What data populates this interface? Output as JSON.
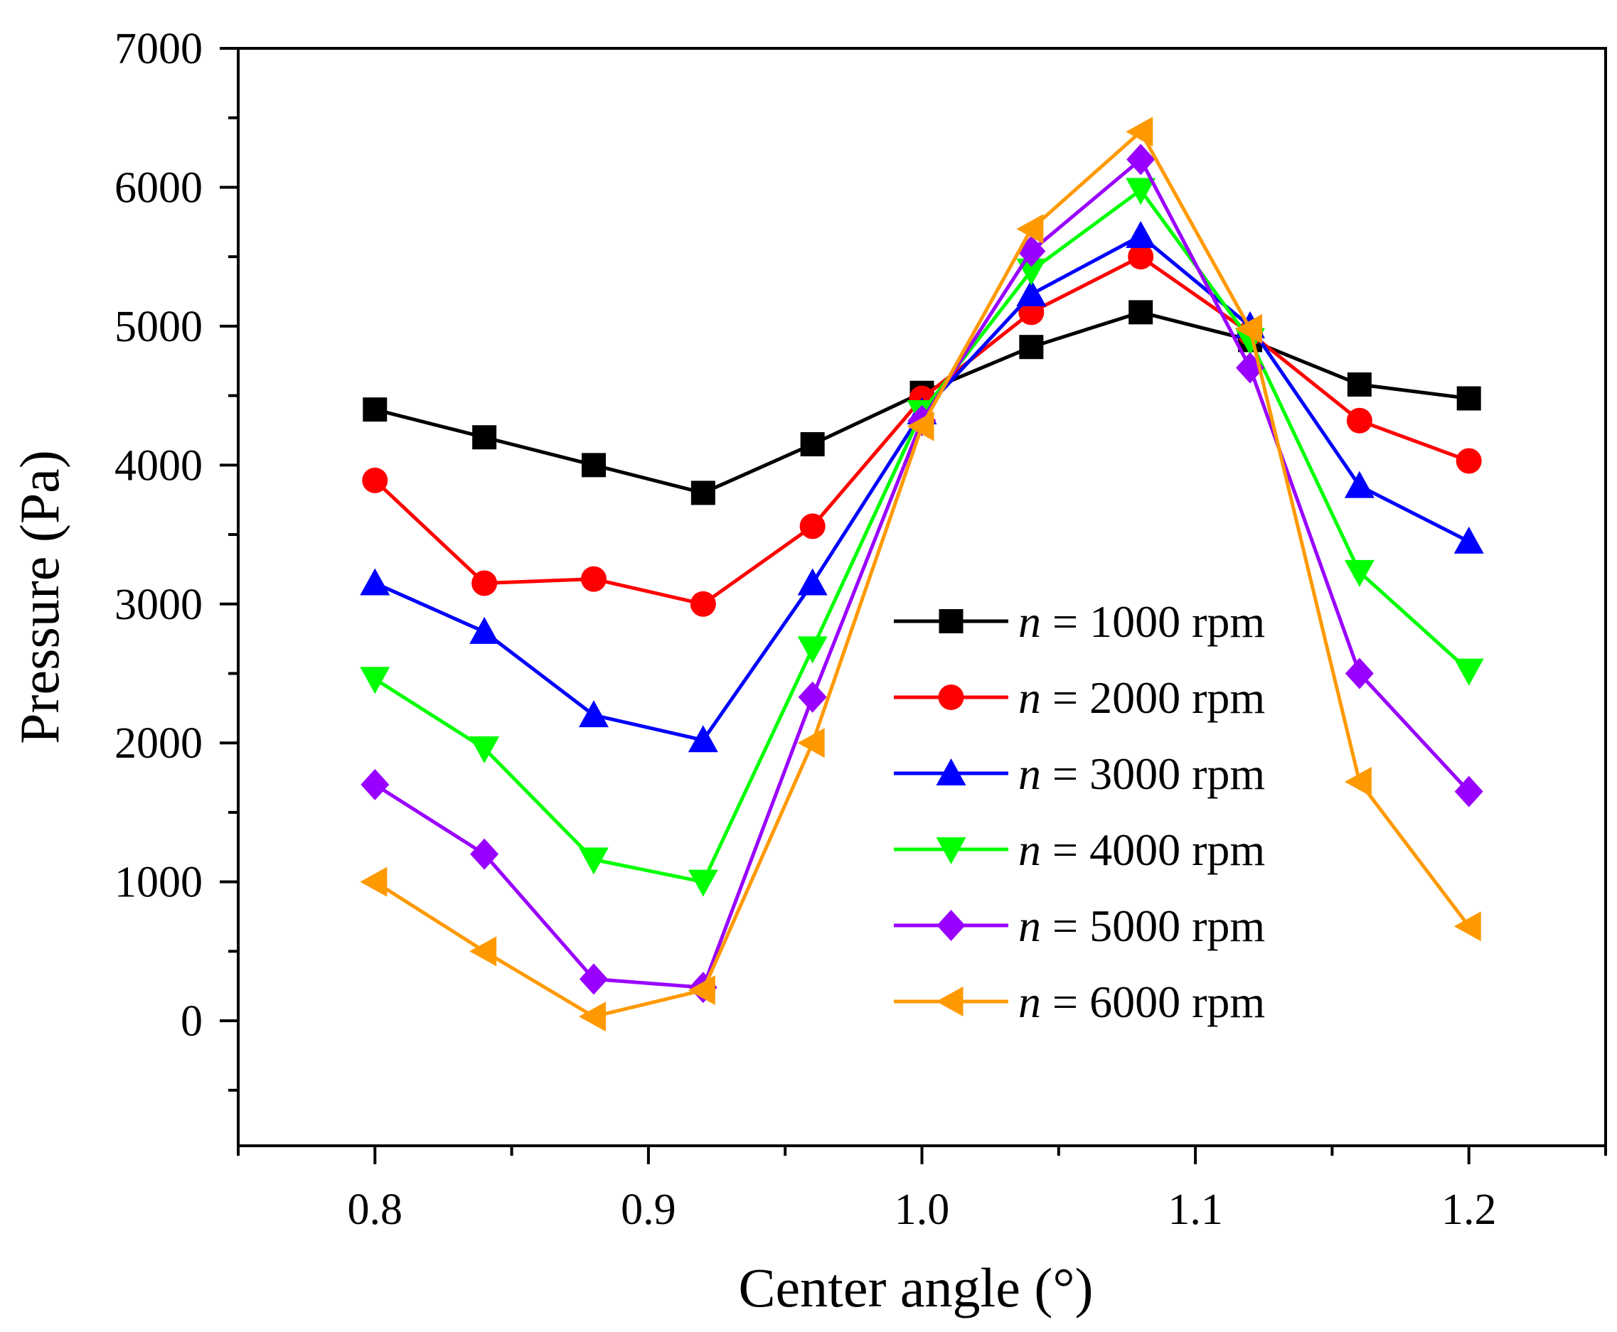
{
  "chart_data": {
    "type": "line",
    "title": "",
    "xlabel": "Center angle (°)",
    "ylabel": "Pressure (Pa)",
    "xlim": [
      0.75,
      1.25
    ],
    "ylim": [
      -900,
      7000
    ],
    "xticks": [
      "0.8",
      "0.9",
      "1.0",
      "1.1",
      "1.2"
    ],
    "yticks": [
      "0",
      "1000",
      "2000",
      "3000",
      "4000",
      "5000",
      "6000",
      "7000"
    ],
    "grid": false,
    "legend_position": "center-right",
    "x": [
      0.8,
      0.84,
      0.88,
      0.92,
      0.96,
      1.0,
      1.04,
      1.08,
      1.12,
      1.16,
      1.2
    ],
    "series": [
      {
        "name": "n = 1000 rpm",
        "legend_var": "n",
        "legend_rest": " = 1000 rpm",
        "color": "#000000",
        "marker": "square",
        "values": [
          4400,
          4200,
          4000,
          3800,
          4150,
          4520,
          4850,
          5100,
          4900,
          4580,
          4480
        ]
      },
      {
        "name": "n = 2000 rpm",
        "legend_var": "n",
        "legend_rest": " = 2000 rpm",
        "color": "#ff0000",
        "marker": "circle",
        "values": [
          3890,
          3150,
          3180,
          3000,
          3560,
          4480,
          5100,
          5500,
          4950,
          4320,
          4030
        ]
      },
      {
        "name": "n = 3000 rpm",
        "legend_var": "n",
        "legend_rest": " = 3000 rpm",
        "color": "#0000ff",
        "marker": "triangle-up",
        "values": [
          3150,
          2800,
          2200,
          2020,
          3150,
          4380,
          5230,
          5650,
          5000,
          3850,
          3450
        ]
      },
      {
        "name": "n = 4000 rpm",
        "legend_var": "n",
        "legend_rest": " = 4000 rpm",
        "color": "#00ff00",
        "marker": "triangle-down",
        "values": [
          2460,
          1960,
          1160,
          1000,
          2680,
          4380,
          5400,
          5980,
          4900,
          3230,
          2520
        ]
      },
      {
        "name": "n = 5000 rpm",
        "legend_var": "n",
        "legend_rest": " = 5000 rpm",
        "color": "#9900ff",
        "marker": "diamond",
        "values": [
          1700,
          1200,
          300,
          240,
          2330,
          4320,
          5540,
          6200,
          4700,
          2500,
          1650
        ]
      },
      {
        "name": "n = 6000 rpm",
        "legend_var": "n",
        "legend_rest": " = 6000 rpm",
        "color": "#ff9900",
        "marker": "triangle-left",
        "values": [
          1000,
          500,
          30,
          220,
          2000,
          4280,
          5700,
          6400,
          4980,
          1720,
          680
        ]
      }
    ]
  }
}
